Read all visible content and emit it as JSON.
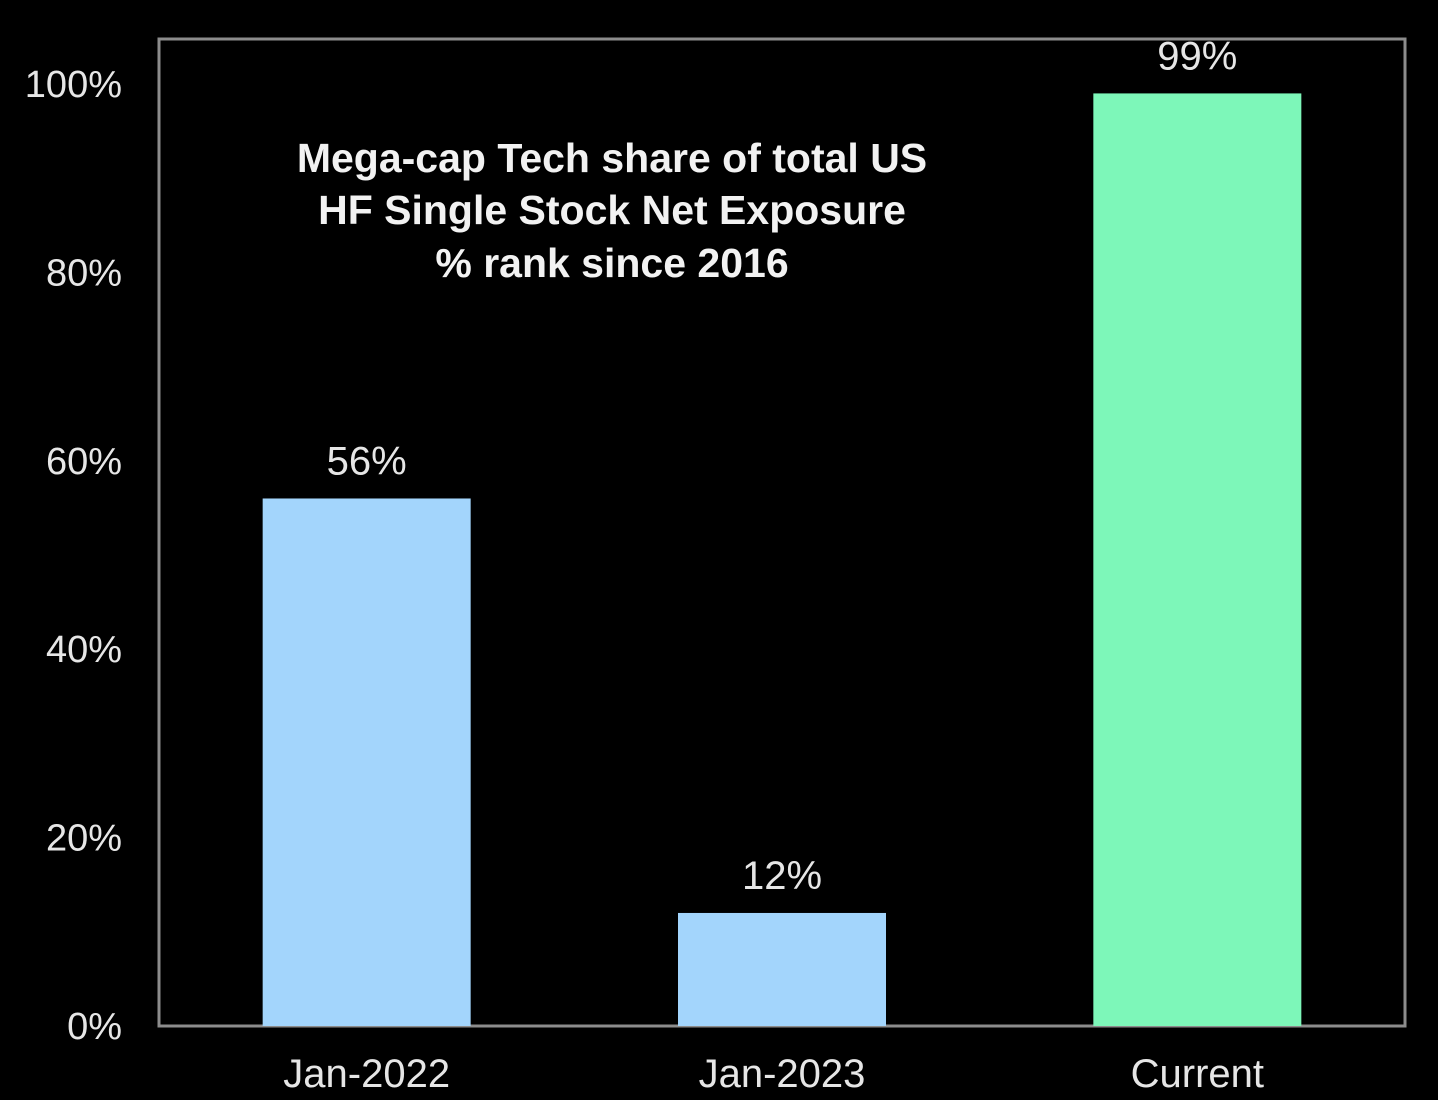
{
  "chart_data": {
    "type": "bar",
    "title_lines": [
      "Mega-cap Tech share of total US",
      "HF Single Stock Net Exposure",
      "% rank since 2016"
    ],
    "categories": [
      "Jan-2022",
      "Jan-2023",
      "Current"
    ],
    "values": [
      56,
      12,
      99
    ],
    "value_labels": [
      "56%",
      "12%",
      "99%"
    ],
    "bar_colors": [
      "#a3d5fc",
      "#a3d5fc",
      "#7df7b9"
    ],
    "yticks": [
      0,
      20,
      40,
      60,
      80,
      100
    ],
    "ytick_labels": [
      "0%",
      "20%",
      "40%",
      "60%",
      "80%",
      "100%"
    ],
    "ylim": [
      0,
      104
    ],
    "xlabel": "",
    "ylabel": "",
    "grid": false,
    "legend": "none",
    "colors": {
      "background": "#000000",
      "axis": "#8c8c8c",
      "text": "#e6e6e6"
    }
  }
}
